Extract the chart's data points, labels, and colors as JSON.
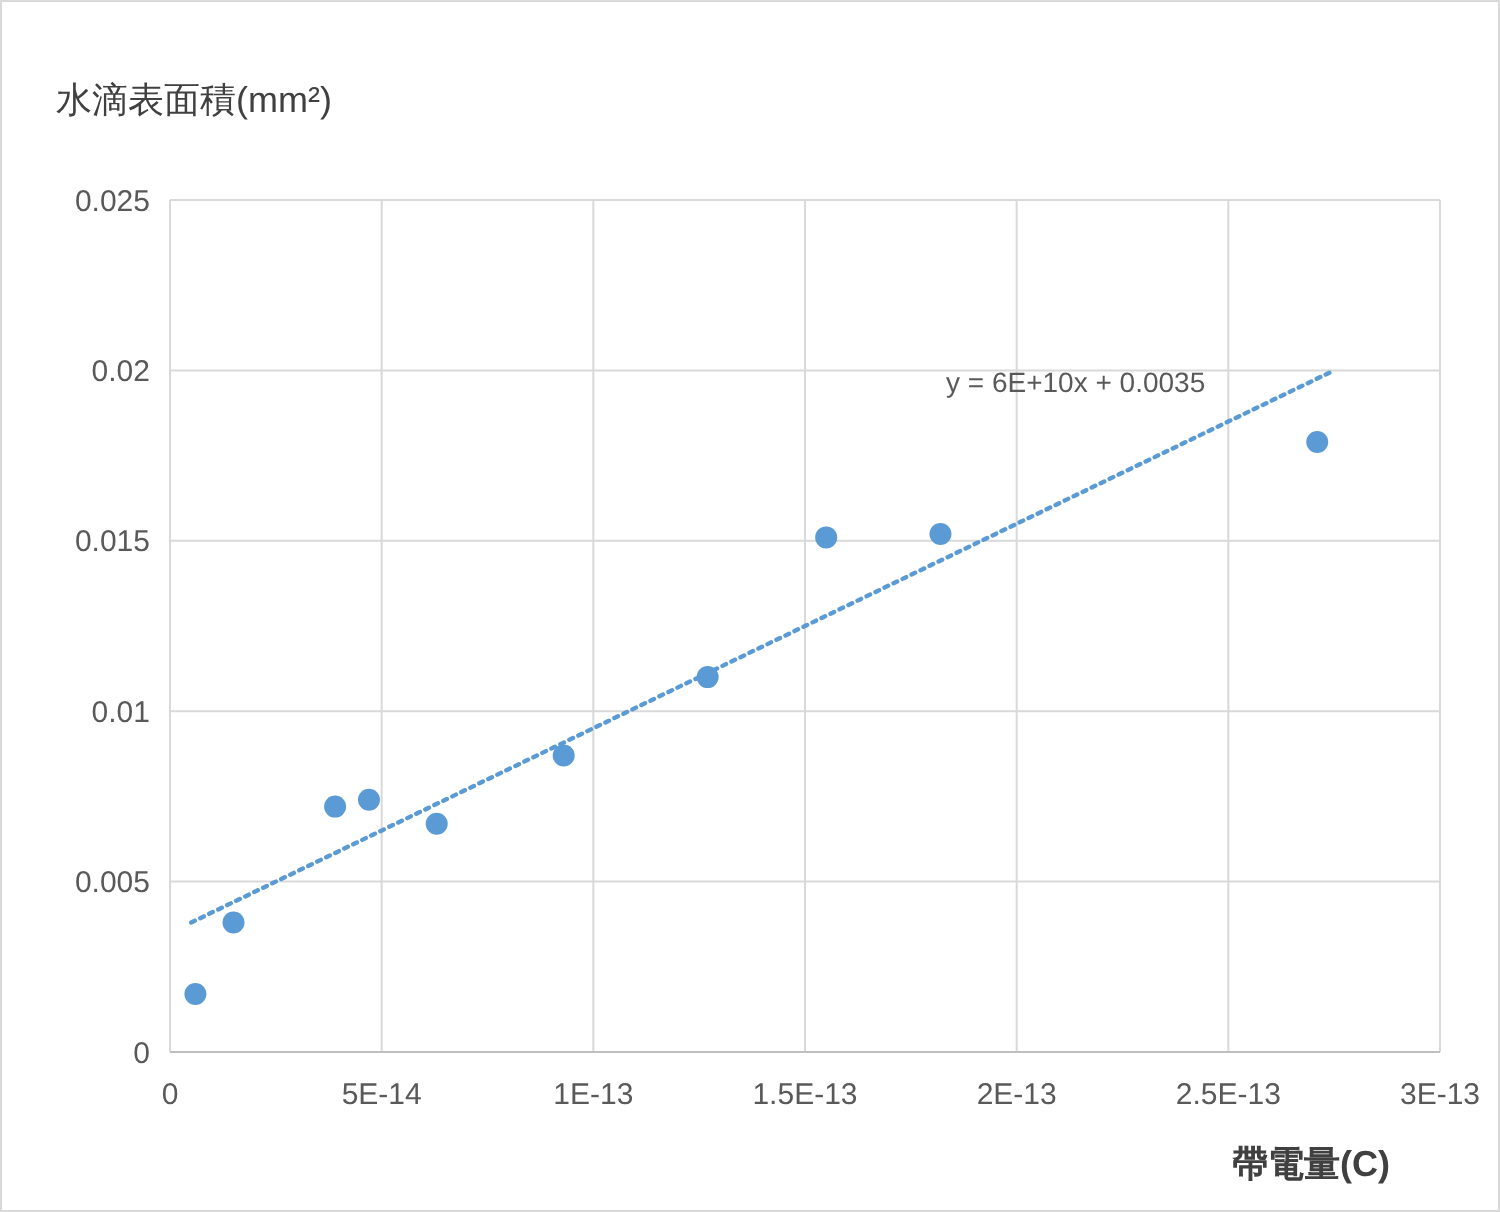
{
  "chart_data": {
    "type": "scatter",
    "ylabel": "水滴表面積(mm²)",
    "xlabel": "帶電量(C)",
    "xlim": [
      0,
      3e-13
    ],
    "xticks": [
      0,
      {
        "value": 5e-14,
        "label": "5E-14"
      },
      {
        "value": 1e-13,
        "label": "1E-13"
      },
      {
        "value": 1.5e-13,
        "label": "1.5E-13"
      },
      {
        "value": 2e-13,
        "label": "2E-13"
      },
      {
        "value": 2.5e-13,
        "label": "2.5E-13"
      },
      {
        "value": 3e-13,
        "label": "3E-13"
      }
    ],
    "ylim": [
      0,
      0.025
    ],
    "yticks": [
      0,
      0.005,
      0.01,
      0.015,
      0.02,
      0.025
    ],
    "grid": true,
    "series": [
      {
        "marker": "circle",
        "color": "#5b9bd5",
        "x": [
          6e-15,
          1.5e-14,
          3.9e-14,
          4.7e-14,
          6.3e-14,
          9.3e-14,
          1.27e-13,
          1.55e-13,
          1.82e-13,
          2.71e-13
        ],
        "values": [
          0.0017,
          0.0038,
          0.0072,
          0.0074,
          0.0067,
          0.0087,
          0.011,
          0.0151,
          0.0152,
          0.0179
        ]
      },
      {
        "type": "line",
        "line_style": "dotted",
        "marker": "none",
        "color": "#5b9bd5",
        "x": [
          5e-15,
          2.75e-13
        ],
        "values": [
          0.0038,
          0.02
        ]
      }
    ],
    "annotations": [
      "y = 6E+10x + 0.0035"
    ]
  }
}
